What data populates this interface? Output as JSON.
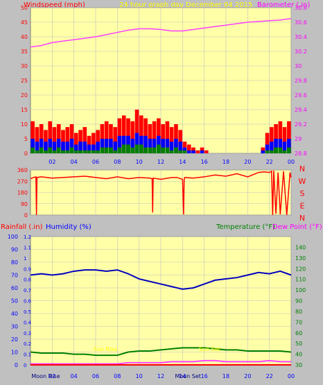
{
  "header": {
    "windspeed_label": "Windspeed (mph)",
    "graph_title": "24 hour graph day",
    "date_label": "December 04 2015",
    "barometer_label": "Barometer (.in)"
  },
  "colors": {
    "background": "#c0c0c0",
    "plot_background": "#ffffa8",
    "grid": "#c0c0c0",
    "wind_gust": "#ff0000",
    "wind_avg": "#0000ff",
    "wind_low": "#008000",
    "barometer": "#ff40ff",
    "direction": "#ff0000",
    "humidity": "#0000c0",
    "temperature": "#008000",
    "dewpoint": "#ff40ff",
    "rainfall": "#ff0000",
    "title_yellow": "#ffff00",
    "y_axis_red": "#ff0000",
    "y_axis_magenta": "#ff00ff",
    "y_axis_blue": "#0000ff",
    "y_axis_green": "#008000"
  },
  "chart_data": [
    {
      "type": "bar",
      "title": "24 hour graph day",
      "ylabel": "Windspeed (mph)",
      "ylim": [
        0,
        50
      ],
      "yticks": [
        "0",
        "5",
        "10",
        "15",
        "20",
        "25",
        "30",
        "35",
        "40",
        "45",
        "50"
      ],
      "xticks": [
        "02",
        "04",
        "06",
        "08",
        "10",
        "12",
        "14",
        "16",
        "18",
        "20",
        "22",
        "00"
      ],
      "x_range_hours": [
        0,
        24
      ],
      "grid": true,
      "series": [
        {
          "name": "Gust",
          "x": [
            0.2,
            0.6,
            1.0,
            1.4,
            1.8,
            2.2,
            2.6,
            3.0,
            3.4,
            3.8,
            4.2,
            4.6,
            5.0,
            5.4,
            5.8,
            6.2,
            6.6,
            7.0,
            7.4,
            7.8,
            8.2,
            8.6,
            9.0,
            9.4,
            9.8,
            10.2,
            10.6,
            11.0,
            11.4,
            11.8,
            12.2,
            12.6,
            13.0,
            13.4,
            13.8,
            14.2,
            14.6,
            15.0,
            15.4,
            15.8,
            16.2,
            16.6,
            17.0,
            17.4,
            17.8,
            18.2,
            18.6,
            19.0,
            19.4,
            19.8,
            20.2,
            20.6,
            21.0,
            21.4,
            21.8,
            22.2,
            22.6,
            23.0,
            23.4,
            23.8
          ],
          "values": [
            11,
            9,
            10,
            8,
            11,
            9,
            10,
            8,
            9,
            10,
            7,
            8,
            9,
            6,
            7,
            8,
            10,
            11,
            10,
            9,
            12,
            13,
            12,
            11,
            15,
            13,
            12,
            10,
            11,
            12,
            10,
            11,
            9,
            10,
            8,
            4,
            3,
            2,
            1,
            2,
            1,
            0,
            0,
            0,
            0,
            0,
            0,
            0,
            0,
            0,
            0,
            0,
            0,
            2,
            7,
            9,
            10,
            11,
            9,
            11
          ]
        },
        {
          "name": "Average",
          "x": [
            0.2,
            0.6,
            1.0,
            1.4,
            1.8,
            2.2,
            2.6,
            3.0,
            3.4,
            3.8,
            4.2,
            4.6,
            5.0,
            5.4,
            5.8,
            6.2,
            6.6,
            7.0,
            7.4,
            7.8,
            8.2,
            8.6,
            9.0,
            9.4,
            9.8,
            10.2,
            10.6,
            11.0,
            11.4,
            11.8,
            12.2,
            12.6,
            13.0,
            13.4,
            13.8,
            14.2,
            14.6,
            15.0,
            15.4,
            15.8,
            16.2,
            16.6,
            17.0,
            17.4,
            17.8,
            18.2,
            18.6,
            19.0,
            19.4,
            19.8,
            20.2,
            20.6,
            21.0,
            21.4,
            21.8,
            22.2,
            22.6,
            23.0,
            23.4,
            23.8
          ],
          "values": [
            5,
            4,
            5,
            4,
            5,
            4,
            5,
            4,
            4,
            5,
            3,
            4,
            4,
            3,
            3,
            4,
            5,
            5,
            5,
            4,
            6,
            6,
            6,
            5,
            7,
            6,
            6,
            5,
            5,
            6,
            5,
            5,
            4,
            5,
            4,
            2,
            1,
            1,
            0,
            1,
            0,
            0,
            0,
            0,
            0,
            0,
            0,
            0,
            0,
            0,
            0,
            0,
            0,
            1,
            3,
            4,
            5,
            5,
            4,
            5
          ]
        },
        {
          "name": "Low",
          "x": [
            0.2,
            0.6,
            1.0,
            1.4,
            1.8,
            2.2,
            2.6,
            3.0,
            3.4,
            3.8,
            4.2,
            4.6,
            5.0,
            5.4,
            5.8,
            6.2,
            6.6,
            7.0,
            7.4,
            7.8,
            8.2,
            8.6,
            9.0,
            9.4,
            9.8,
            10.2,
            10.6,
            11.0,
            11.4,
            11.8,
            12.2,
            12.6,
            13.0,
            13.4,
            13.8,
            14.2,
            14.6,
            15.0,
            15.4,
            15.8,
            16.2,
            16.6,
            17.0,
            17.4,
            17.8,
            18.2,
            18.6,
            19.0,
            19.4,
            19.8,
            20.2,
            20.6,
            21.0,
            21.4,
            21.8,
            22.2,
            22.6,
            23.0,
            23.4,
            23.8
          ],
          "values": [
            2,
            1,
            2,
            1,
            2,
            1,
            2,
            1,
            1,
            2,
            1,
            1,
            1,
            1,
            1,
            1,
            2,
            2,
            2,
            1,
            2,
            3,
            3,
            2,
            3,
            3,
            2,
            2,
            2,
            3,
            2,
            2,
            1,
            2,
            1,
            1,
            0,
            0,
            0,
            0,
            0,
            0,
            0,
            0,
            0,
            0,
            0,
            0,
            0,
            0,
            0,
            0,
            0,
            0,
            1,
            1,
            2,
            2,
            1,
            2
          ]
        }
      ]
    },
    {
      "type": "line",
      "ylabel": "Barometer (.in)",
      "ylim": [
        28.8,
        30.8
      ],
      "yticks": [
        "28.8",
        "29",
        "29.2",
        "29.4",
        "29.6",
        "29.8",
        "30",
        "30.2",
        "30.4",
        "30.6",
        "30.8"
      ],
      "x_range_hours": [
        0,
        24
      ],
      "series": [
        {
          "name": "Barometer",
          "x": [
            0,
            1,
            2,
            3,
            4,
            5,
            6,
            7,
            8,
            9,
            10,
            11,
            12,
            13,
            14,
            15,
            16,
            17,
            18,
            19,
            20,
            21,
            22,
            23,
            24
          ],
          "values": [
            30.26,
            30.28,
            30.32,
            30.34,
            30.36,
            30.38,
            30.4,
            30.43,
            30.46,
            30.49,
            30.51,
            30.51,
            30.5,
            30.48,
            30.48,
            30.5,
            30.52,
            30.54,
            30.56,
            30.58,
            30.6,
            30.61,
            30.62,
            30.63,
            30.65
          ]
        }
      ]
    },
    {
      "type": "line",
      "ylabel": "Wind direction",
      "ylim": [
        0,
        360
      ],
      "yticks": [
        "0",
        "90",
        "180",
        "270",
        "360"
      ],
      "compass_labels": [
        "N",
        "W",
        "S",
        "E",
        "N"
      ],
      "x_range_hours": [
        0,
        24
      ],
      "series": [
        {
          "name": "Direction",
          "x": [
            0,
            0.3,
            0.5,
            0.55,
            0.6,
            1,
            2,
            3,
            4,
            5,
            6,
            7,
            8,
            9,
            10,
            11,
            11.2,
            11.25,
            11.3,
            12,
            13,
            13.5,
            14,
            14.1,
            14.15,
            14.2,
            15,
            16,
            17,
            18,
            19,
            20,
            21,
            21.5,
            22,
            22.2,
            22.3,
            22.4,
            22.6,
            22.8,
            23,
            23.3,
            23.6,
            23.9,
            24
          ],
          "values": [
            290,
            300,
            305,
            0,
            300,
            305,
            295,
            300,
            305,
            310,
            300,
            290,
            305,
            290,
            300,
            295,
            290,
            20,
            295,
            285,
            300,
            300,
            285,
            5,
            280,
            300,
            295,
            305,
            320,
            310,
            330,
            305,
            340,
            345,
            340,
            350,
            0,
            355,
            10,
            340,
            5,
            350,
            0,
            340,
            300
          ]
        }
      ]
    },
    {
      "type": "line",
      "xticks": [
        "02",
        "04",
        "06",
        "08",
        "10",
        "12",
        "14",
        "16",
        "18",
        "20",
        "22",
        "00"
      ],
      "x_range_hours": [
        0,
        24
      ],
      "left_axes": [
        {
          "label": "Rainfall (.in)",
          "ylim": [
            0,
            1.2
          ],
          "ticks": [
            "0",
            "0.1",
            "0.2",
            "0.3",
            "0.4",
            "0.5",
            "0.6",
            "0.7",
            "0.8",
            "0.9",
            "1",
            "1.1",
            "1.2"
          ]
        },
        {
          "label": "Humidity (%)",
          "ylim": [
            0,
            100
          ],
          "ticks": [
            "0",
            "10",
            "20",
            "30",
            "40",
            "50",
            "60",
            "70",
            "80",
            "90",
            "100"
          ]
        }
      ],
      "right_axes": [
        {
          "label": "Temperature (°F)",
          "ylim": [
            30,
            150
          ],
          "ticks": [
            "30",
            "40",
            "50",
            "60",
            "70",
            "80",
            "90",
            "100",
            "110",
            "120",
            "130",
            "140"
          ]
        },
        {
          "label": "Dew Point (°F)",
          "ylim": [
            30,
            150
          ],
          "ticks": []
        }
      ],
      "series": [
        {
          "name": "Humidity",
          "axis": "humidity",
          "x": [
            0,
            1,
            2,
            3,
            4,
            5,
            6,
            7,
            8,
            9,
            10,
            11,
            12,
            13,
            14,
            15,
            16,
            17,
            18,
            19,
            20,
            21,
            22,
            23,
            24
          ],
          "values": [
            70,
            71,
            70,
            71,
            73,
            74,
            74,
            73,
            74,
            71,
            67,
            65,
            63,
            61,
            59,
            60,
            63,
            66,
            67,
            68,
            70,
            72,
            71,
            73,
            70
          ]
        },
        {
          "name": "Temperature",
          "axis": "temperature",
          "x": [
            0,
            1,
            2,
            3,
            4,
            5,
            6,
            7,
            8,
            9,
            10,
            11,
            12,
            13,
            14,
            15,
            16,
            17,
            18,
            19,
            20,
            21,
            22,
            23,
            24
          ],
          "values": [
            42,
            41,
            41,
            41,
            40,
            40,
            39,
            39,
            39,
            42,
            43,
            43,
            44,
            45,
            46,
            46,
            46,
            45,
            44,
            44,
            43,
            43,
            43,
            43,
            42
          ]
        },
        {
          "name": "Dew Point",
          "axis": "temperature",
          "x": [
            0,
            1,
            2,
            3,
            4,
            5,
            6,
            7,
            8,
            9,
            10,
            11,
            12,
            13,
            14,
            15,
            16,
            17,
            18,
            19,
            20,
            21,
            22,
            23,
            24
          ],
          "values": [
            31,
            31,
            31,
            31,
            31,
            31,
            31,
            31,
            31,
            32,
            32,
            32,
            32,
            33,
            33,
            33,
            34,
            34,
            33,
            33,
            33,
            33,
            34,
            33,
            33
          ]
        },
        {
          "name": "Rainfall",
          "axis": "rainfall",
          "x": [
            0,
            6,
            12,
            18,
            24
          ],
          "values": [
            0,
            0,
            0,
            0,
            0
          ]
        }
      ],
      "annotations": [
        {
          "text": "Moon Rise",
          "x_hour": 1.4
        },
        {
          "text": "Sun Rise",
          "x_hour": 6.9
        },
        {
          "text": "Moon Set",
          "x_hour": 14.5
        },
        {
          "text": "Sun Set",
          "x_hour": 16.5
        }
      ]
    }
  ],
  "plot2": {
    "rainfall_label": "Rainfall (.in)",
    "humidity_label": "Humidity (%)",
    "temperature_label": "Temperature (°F)",
    "dewpoint_label": "Dew Point (°F)"
  },
  "compass": [
    "N",
    "W",
    "S",
    "E",
    "N"
  ]
}
